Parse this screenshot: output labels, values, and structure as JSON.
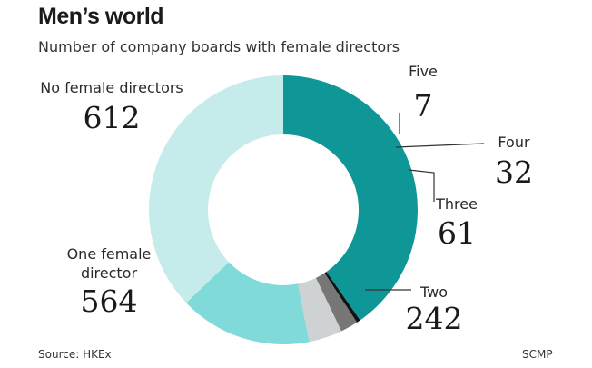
{
  "title": "Men’s world",
  "subtitle": "Number of company boards with female directors",
  "source": "Source: HKEx",
  "credit": "SCMP",
  "chart_data": {
    "type": "pie",
    "donut": true,
    "categories": [
      "No female directors",
      "Five",
      "Four",
      "Three",
      "Two",
      "One female director"
    ],
    "label_lines": [
      [
        "No female directors"
      ],
      [
        "Five"
      ],
      [
        "Four"
      ],
      [
        "Three"
      ],
      [
        "Two"
      ],
      [
        "One female",
        "director"
      ]
    ],
    "values": [
      612,
      7,
      32,
      61,
      242,
      564
    ],
    "colors": [
      "#0f9797",
      "#111111",
      "#777777",
      "#cfd2d2",
      "#7fdad9",
      "#c5eceb"
    ]
  }
}
